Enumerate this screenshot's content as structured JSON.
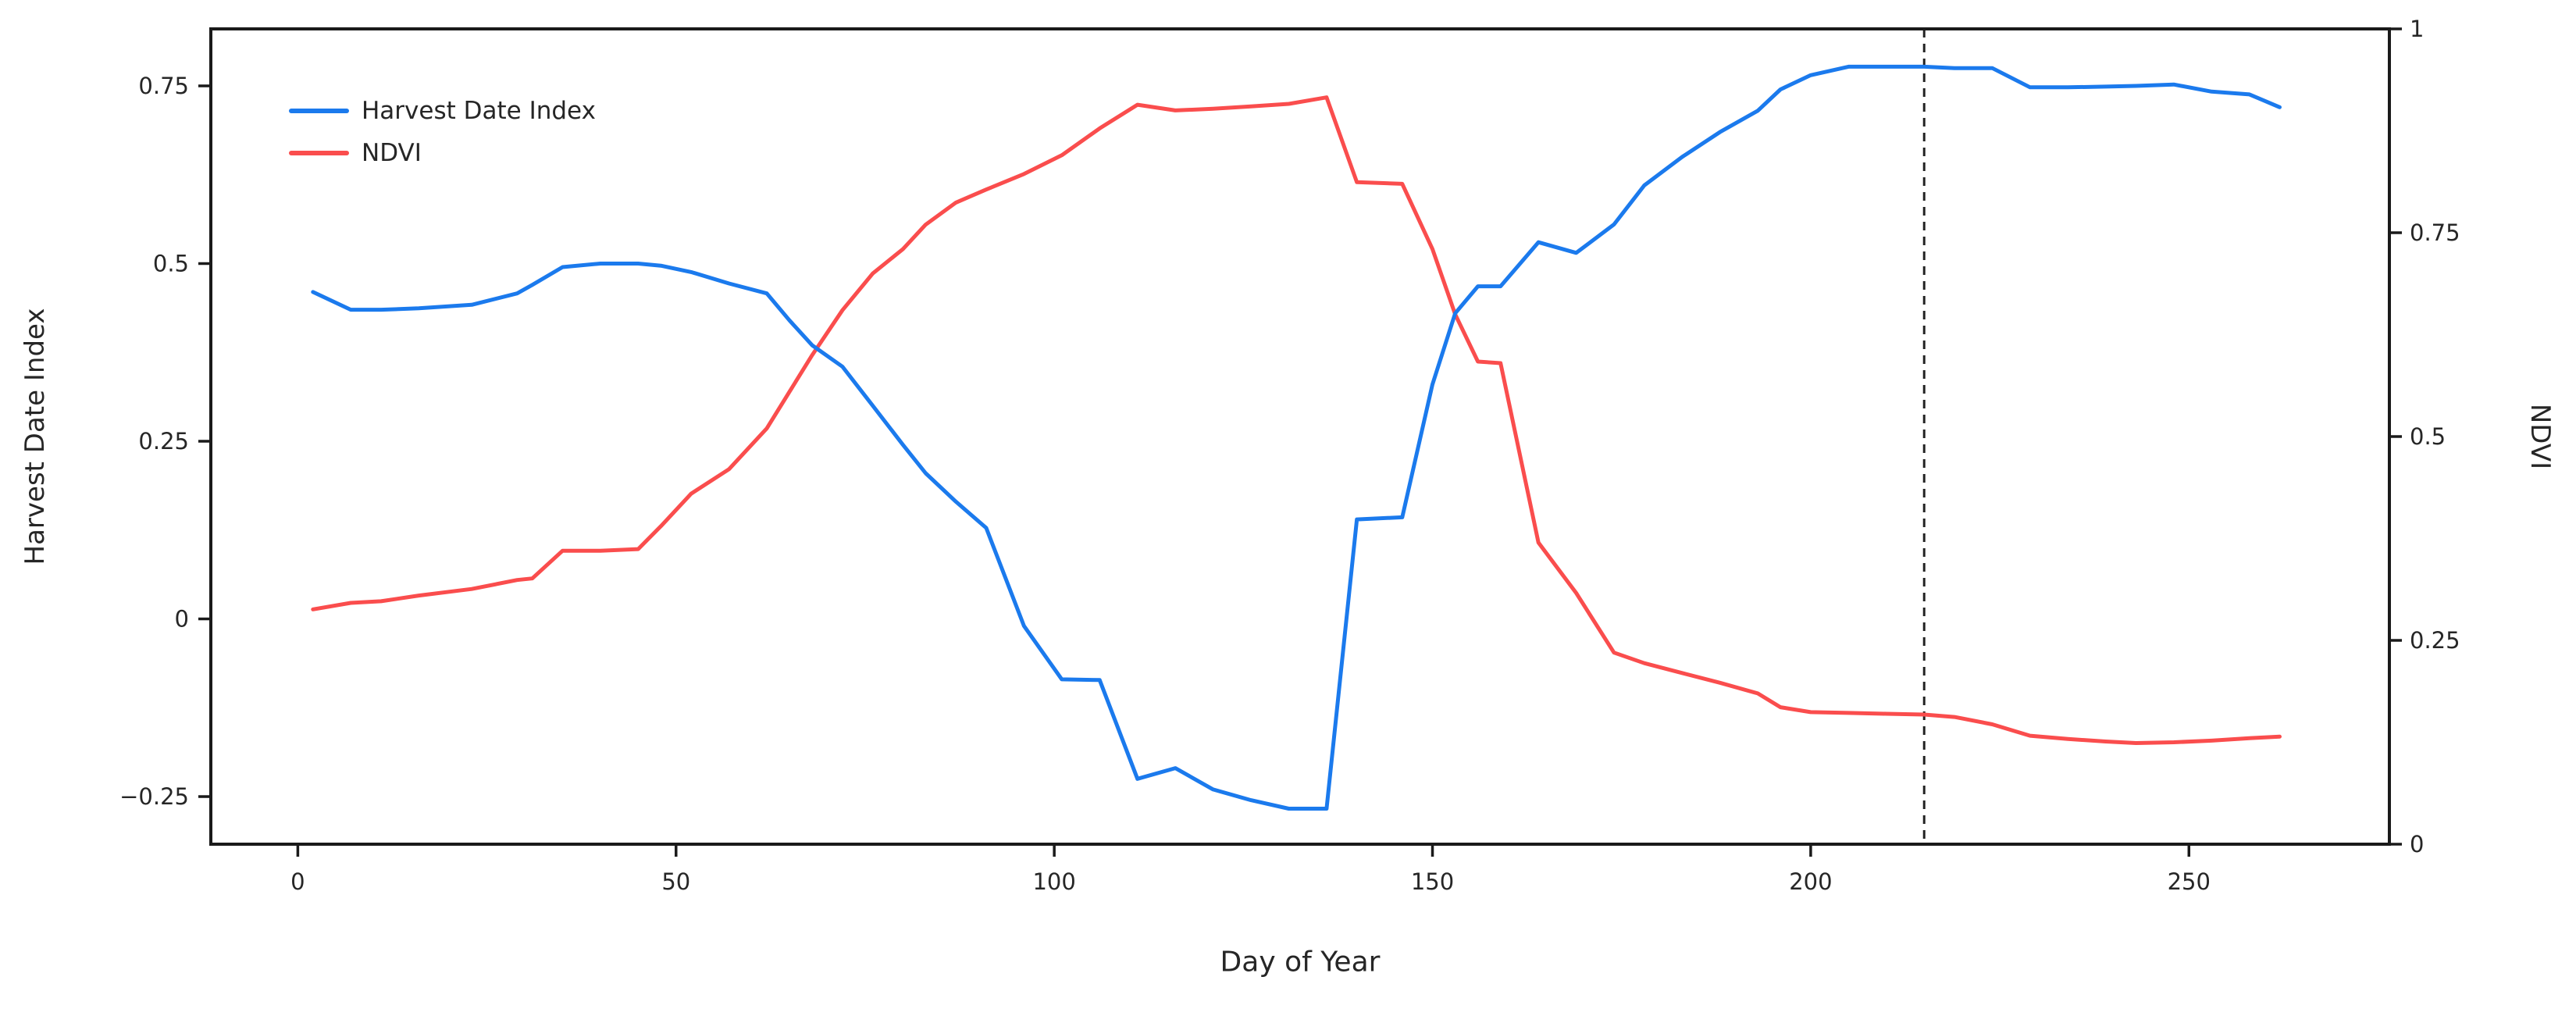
{
  "figure": {
    "background": "#ffffff",
    "x_axis_label": "Day of Year",
    "y_axis_left_label": "Harvest Date Index",
    "y_axis_right_label": "NDVI",
    "legend": [
      {
        "label": "Harvest Date Index",
        "color": "#1b7aed"
      },
      {
        "label": "NDVI",
        "color": "#fa4d4d"
      }
    ]
  },
  "chart_data": {
    "type": "line",
    "title": "",
    "xlabel": "Day of Year",
    "ylabel_left": "Harvest Date Index",
    "ylabel_right": "NDVI",
    "grid": false,
    "legend_position": "upper-left-inside",
    "xlim": [
      -11.5,
      276.5
    ],
    "ylim_left": [
      -0.317,
      0.8302
    ],
    "ylim_right": [
      0,
      1
    ],
    "xticks": {
      "values": [
        0,
        50,
        100,
        150,
        200,
        250
      ],
      "labels": [
        "0",
        "50",
        "100",
        "150",
        "200",
        "250"
      ]
    },
    "yticks_left": {
      "values": [
        0.75,
        0.5,
        0.25,
        0,
        -0.25
      ],
      "labels": [
        "0.75",
        "0.5",
        "0.25",
        "0",
        "−0.25"
      ]
    },
    "yticks_right": {
      "values": [
        1,
        0.75,
        0.5,
        0.25,
        0
      ],
      "labels": [
        "1",
        "0.75",
        "0.5",
        "0.25",
        "0"
      ]
    },
    "x": [
      2,
      7,
      11,
      16,
      23,
      29,
      31,
      35,
      40,
      45,
      48,
      52,
      57,
      62,
      65,
      68,
      72,
      76,
      80,
      83,
      87,
      91,
      96,
      101,
      106,
      111,
      116,
      121,
      126,
      131,
      136,
      140,
      146,
      150,
      153,
      156,
      159,
      164,
      169,
      174,
      178,
      183,
      188,
      193,
      196,
      200,
      205,
      210,
      215,
      219,
      224,
      229,
      234,
      239,
      243,
      248,
      253,
      258,
      262
    ],
    "series": [
      {
        "name": "Harvest Date Index",
        "axis": "left",
        "color": "#1b7aed",
        "values": [
          0.46,
          0.435,
          0.435,
          0.437,
          0.442,
          0.458,
          0.47,
          0.495,
          0.5,
          0.5,
          0.497,
          0.488,
          0.472,
          0.458,
          0.42,
          0.385,
          0.355,
          0.3,
          0.245,
          0.205,
          0.165,
          0.128,
          -0.01,
          -0.085,
          -0.086,
          -0.225,
          -0.21,
          -0.24,
          -0.255,
          -0.267,
          -0.267,
          0.14,
          0.143,
          0.33,
          0.43,
          0.468,
          0.468,
          0.53,
          0.515,
          0.555,
          0.61,
          0.65,
          0.685,
          0.715,
          0.745,
          0.765,
          0.777,
          0.777,
          0.777,
          0.775,
          0.775,
          0.748,
          0.748,
          0.749,
          0.75,
          0.752,
          0.742,
          0.738,
          0.72
        ]
      },
      {
        "name": "NDVI",
        "axis": "right",
        "color": "#fa4d4d",
        "values": [
          0.288,
          0.296,
          0.298,
          0.305,
          0.313,
          0.324,
          0.326,
          0.36,
          0.36,
          0.362,
          0.39,
          0.43,
          0.46,
          0.51,
          0.555,
          0.6,
          0.655,
          0.7,
          0.73,
          0.76,
          0.787,
          0.803,
          0.822,
          0.845,
          0.878,
          0.907,
          0.9,
          0.902,
          0.905,
          0.908,
          0.916,
          0.812,
          0.81,
          0.73,
          0.65,
          0.592,
          0.59,
          0.37,
          0.308,
          0.235,
          0.222,
          0.21,
          0.198,
          0.185,
          0.168,
          0.162,
          0.161,
          0.16,
          0.159,
          0.156,
          0.147,
          0.133,
          0.129,
          0.126,
          0.124,
          0.125,
          0.127,
          0.13,
          0.132
        ]
      }
    ],
    "annotations": [
      {
        "type": "vline",
        "x": 215,
        "style": "dashed",
        "color": "#222222"
      }
    ]
  }
}
